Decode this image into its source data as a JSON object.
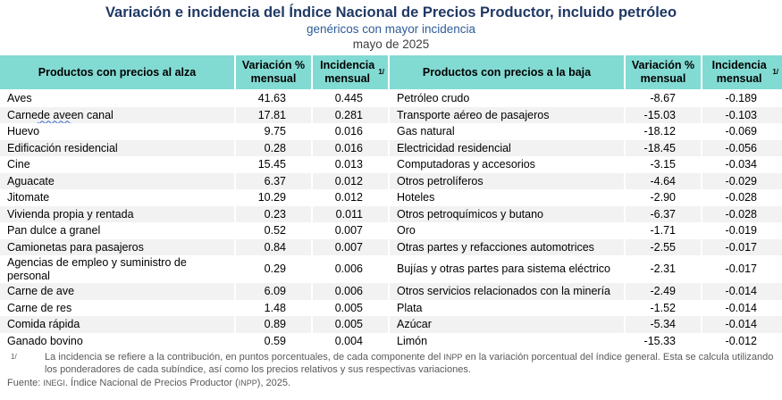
{
  "title": "Variación e incidencia del Índice Nacional de Precios Productor, incluido petróleo",
  "subtitle": "genéricos con mayor incidencia",
  "period": "mayo de 2025",
  "colors": {
    "title": "#1F3864",
    "subtitle": "#2E5C9A",
    "header_bg": "#82DBD3",
    "row_alt_bg": "#F2F2F2",
    "footnote_text": "#595959"
  },
  "table": {
    "headers": {
      "alza": "Productos con precios al alza",
      "variacion": "Variación % mensual",
      "incidencia": "Incidencia mensual",
      "incidencia_sup": "1/",
      "baja": "Productos con precios a la baja"
    },
    "rows": [
      {
        "alza": {
          "name": "Aves",
          "var": "41.63",
          "inc": "0.445"
        },
        "baja": {
          "name": "Petróleo crudo",
          "var": "-8.67",
          "inc": "-0.189"
        }
      },
      {
        "alza": {
          "name": "Carne de ave en canal",
          "squiggle": "de ave",
          "var": "17.81",
          "inc": "0.281"
        },
        "baja": {
          "name": "Transporte aéreo de pasajeros",
          "var": "-15.03",
          "inc": "-0.103"
        }
      },
      {
        "alza": {
          "name": "Huevo",
          "var": "9.75",
          "inc": "0.016"
        },
        "baja": {
          "name": "Gas natural",
          "var": "-18.12",
          "inc": "-0.069"
        }
      },
      {
        "alza": {
          "name": "Edificación residencial",
          "var": "0.28",
          "inc": "0.016"
        },
        "baja": {
          "name": "Electricidad residencial",
          "var": "-18.45",
          "inc": "-0.056"
        }
      },
      {
        "alza": {
          "name": "Cine",
          "var": "15.45",
          "inc": "0.013"
        },
        "baja": {
          "name": "Computadoras y accesorios",
          "var": "-3.15",
          "inc": "-0.034"
        }
      },
      {
        "alza": {
          "name": "Aguacate",
          "var": "6.37",
          "inc": "0.012"
        },
        "baja": {
          "name": "Otros petrolíferos",
          "var": "-4.64",
          "inc": "-0.029"
        }
      },
      {
        "alza": {
          "name": "Jitomate",
          "var": "10.29",
          "inc": "0.012"
        },
        "baja": {
          "name": "Hoteles",
          "var": "-2.90",
          "inc": "-0.028"
        }
      },
      {
        "alza": {
          "name": "Vivienda propia y rentada",
          "var": "0.23",
          "inc": "0.011"
        },
        "baja": {
          "name": "Otros petroquímicos y butano",
          "var": "-6.37",
          "inc": "-0.028"
        }
      },
      {
        "alza": {
          "name": "Pan dulce a granel",
          "var": "0.52",
          "inc": "0.007"
        },
        "baja": {
          "name": "Oro",
          "var": "-1.71",
          "inc": "-0.019"
        }
      },
      {
        "alza": {
          "name": "Camionetas para pasajeros",
          "var": "0.84",
          "inc": "0.007"
        },
        "baja": {
          "name": "Otras partes y refacciones automotrices",
          "var": "-2.55",
          "inc": "-0.017"
        }
      },
      {
        "alza": {
          "name": "Agencias de empleo y suministro de personal",
          "var": "0.29",
          "inc": "0.006"
        },
        "baja": {
          "name": "Bujías y otras partes para sistema eléctrico",
          "var": "-2.31",
          "inc": "-0.017"
        }
      },
      {
        "alza": {
          "name": "Carne de ave",
          "var": "6.09",
          "inc": "0.006"
        },
        "baja": {
          "name": "Otros servicios relacionados con la minería",
          "var": "-2.49",
          "inc": "-0.014"
        }
      },
      {
        "alza": {
          "name": "Carne de res",
          "var": "1.48",
          "inc": "0.005"
        },
        "baja": {
          "name": "Plata",
          "var": "-1.52",
          "inc": "-0.014"
        }
      },
      {
        "alza": {
          "name": "Comida rápida",
          "var": "0.89",
          "inc": "0.005"
        },
        "baja": {
          "name": "Azúcar",
          "var": "-5.34",
          "inc": "-0.014"
        }
      },
      {
        "alza": {
          "name": "Ganado bovino",
          "var": "0.59",
          "inc": "0.004"
        },
        "baja": {
          "name": "Limón",
          "var": "-15.33",
          "inc": "-0.012"
        }
      }
    ]
  },
  "footnote": {
    "marker": "1/",
    "text": "La incidencia se refiere a la contribución, en puntos porcentuales, de cada componente del INPP en la variación porcentual del índice general. Esta se calcula utilizando los ponderadores de cada subíndice, así como los precios relativos y sus respectivas variaciones."
  },
  "source": "Fuente: INEGI. Índice Nacional de Precios Productor (INPP), 2025."
}
